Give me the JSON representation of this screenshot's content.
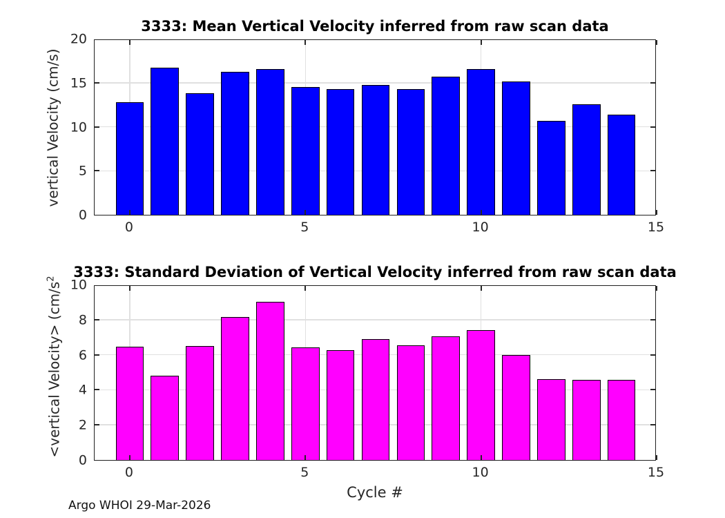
{
  "figure": {
    "footer": "Argo WHOI 29-Mar-2026"
  },
  "chart_data": [
    {
      "type": "bar",
      "title": "3333: Mean Vertical Velocity inferred from raw scan data",
      "ylabel": "vertical Velocity (cm/s)",
      "ylabel_superscript": "",
      "xlabel": "",
      "bar_color": "#0000ff",
      "bar_edge_color": "#000000",
      "bar_width": 0.8,
      "categories": [
        0,
        1,
        2,
        3,
        4,
        5,
        6,
        7,
        8,
        9,
        10,
        11,
        12,
        13,
        14
      ],
      "values": [
        12.8,
        16.7,
        13.8,
        16.25,
        16.55,
        14.5,
        14.3,
        14.75,
        14.3,
        15.65,
        16.55,
        15.1,
        10.65,
        12.55,
        11.35
      ],
      "xlim": [
        -1,
        15
      ],
      "ylim": [
        0,
        20
      ],
      "xticks": [
        0,
        5,
        10,
        15
      ],
      "yticks": [
        0,
        5,
        10,
        15,
        20
      ],
      "grid": true,
      "legend": "none"
    },
    {
      "type": "bar",
      "title": "3333: Standard Deviation of Vertical Velocity inferred from raw scan data",
      "ylabel": "<vertical Velocity> (cm/s",
      "ylabel_superscript": "2",
      "xlabel": "Cycle #",
      "bar_color": "#ff00ff",
      "bar_edge_color": "#000000",
      "bar_width": 0.8,
      "categories": [
        0,
        1,
        2,
        3,
        4,
        5,
        6,
        7,
        8,
        9,
        10,
        11,
        12,
        13,
        14
      ],
      "values": [
        6.45,
        4.8,
        6.5,
        8.15,
        9.0,
        6.4,
        6.25,
        6.9,
        6.55,
        7.05,
        7.4,
        6.0,
        4.6,
        4.55,
        4.55
      ],
      "xlim": [
        -1,
        15
      ],
      "ylim": [
        0,
        10
      ],
      "xticks": [
        0,
        5,
        10,
        15
      ],
      "yticks": [
        0,
        2,
        4,
        6,
        8,
        10
      ],
      "grid": true,
      "legend": "none"
    }
  ]
}
